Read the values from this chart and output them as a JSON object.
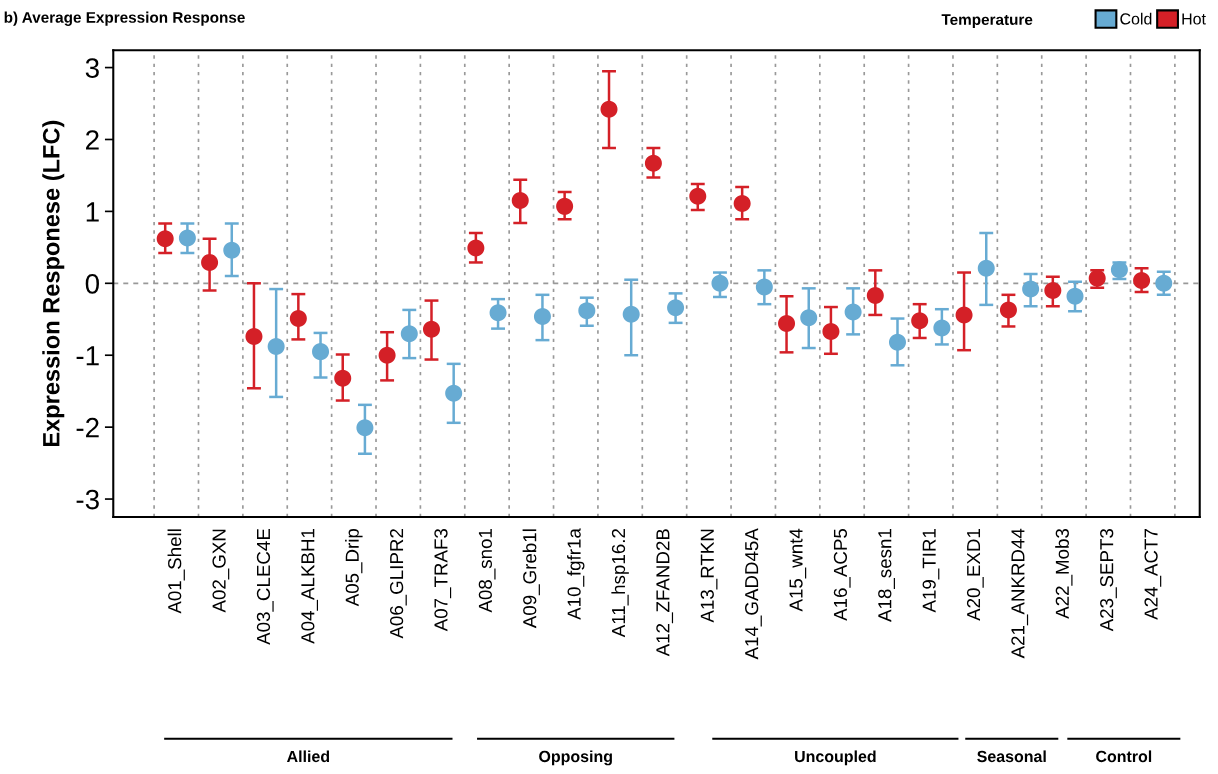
{
  "chart_data": {
    "type": "scatter",
    "title": "b) Average Expression Response",
    "ylabel": "Expression Responese (LFC)",
    "legend_title": "Temperature",
    "legend": "top right",
    "marker": "circle",
    "grid": "x",
    "categories": [
      "A01_Shell",
      "A02_GXN",
      "A03_CLEC4E",
      "A04_ALKBH1",
      "A05_Drip",
      "A06_GLIPR2",
      "A07_TRAF3",
      "A08_sno1",
      "A09_Greb1l",
      "A10_fgfr1a",
      "A11_hsp16.2",
      "A12_ZFAND2B",
      "A13_RTKN",
      "A14_GADD45A",
      "A15_wnt4",
      "A16_ACP5",
      "A18_sesn1",
      "A19_TIR1",
      "A20_EXD1",
      "A21_ANKRD44",
      "A22_Mob3",
      "A23_SEPT3",
      "A24_ACT7"
    ],
    "ylim": [
      -3.25,
      3.24
    ],
    "yticks": [
      -3,
      -2,
      -1,
      0,
      1,
      2,
      3
    ],
    "ref_lines": [
      {
        "axis": "y",
        "value": 0,
        "color": "#999999",
        "line_style": "dashed"
      }
    ],
    "series": [
      {
        "name": "Hot",
        "color": "#d42027",
        "values": [
          0.62,
          0.29,
          -0.74,
          -0.49,
          -1.32,
          -1.0,
          -0.64,
          0.49,
          1.15,
          1.07,
          2.42,
          1.67,
          1.21,
          1.11,
          -0.56,
          -0.67,
          -0.17,
          -0.52,
          -0.44,
          -0.37,
          -0.1,
          0.07,
          0.04
        ],
        "errors": [
          [
            0.42,
            0.83
          ],
          [
            -0.1,
            0.62
          ],
          [
            -1.46,
            0.0
          ],
          [
            -0.78,
            -0.15
          ],
          [
            -1.63,
            -0.99
          ],
          [
            -1.35,
            -0.68
          ],
          [
            -1.06,
            -0.24
          ],
          [
            0.29,
            0.7
          ],
          [
            0.84,
            1.44
          ],
          [
            0.89,
            1.27
          ],
          [
            1.88,
            2.95
          ],
          [
            1.47,
            1.88
          ],
          [
            1.02,
            1.38
          ],
          [
            0.89,
            1.34
          ],
          [
            -0.96,
            -0.18
          ],
          [
            -0.98,
            -0.33
          ],
          [
            -0.44,
            0.18
          ],
          [
            -0.76,
            -0.29
          ],
          [
            -0.93,
            0.15
          ],
          [
            -0.6,
            -0.16
          ],
          [
            -0.32,
            0.09
          ],
          [
            -0.06,
            0.18
          ],
          [
            -0.12,
            0.21
          ]
        ]
      },
      {
        "name": "Cold",
        "color": "#67abd3",
        "values": [
          0.63,
          0.46,
          -0.88,
          -0.95,
          -2.01,
          -0.7,
          -1.53,
          -0.41,
          -0.46,
          -0.38,
          -0.43,
          -0.34,
          0.0,
          -0.05,
          -0.48,
          -0.4,
          -0.82,
          -0.62,
          0.21,
          -0.08,
          -0.18,
          0.19,
          0.0
        ],
        "errors": [
          [
            0.42,
            0.83
          ],
          [
            0.1,
            0.83
          ],
          [
            -1.58,
            -0.08
          ],
          [
            -1.31,
            -0.69
          ],
          [
            -2.37,
            -1.69
          ],
          [
            -1.04,
            -0.37
          ],
          [
            -1.94,
            -1.12
          ],
          [
            -0.63,
            -0.22
          ],
          [
            -0.79,
            -0.16
          ],
          [
            -0.59,
            -0.2
          ],
          [
            -1.0,
            0.05
          ],
          [
            -0.55,
            -0.14
          ],
          [
            -0.19,
            0.15
          ],
          [
            -0.29,
            0.18
          ],
          [
            -0.9,
            -0.07
          ],
          [
            -0.71,
            -0.07
          ],
          [
            -1.14,
            -0.49
          ],
          [
            -0.85,
            -0.36
          ],
          [
            -0.3,
            0.7
          ],
          [
            -0.32,
            0.13
          ],
          [
            -0.39,
            0.02
          ],
          [
            0.06,
            0.29
          ],
          [
            -0.16,
            0.16
          ]
        ]
      }
    ],
    "annotations": [
      "Allied",
      "Opposing",
      "Uncoupled",
      "Seasonal",
      "Control"
    ]
  }
}
